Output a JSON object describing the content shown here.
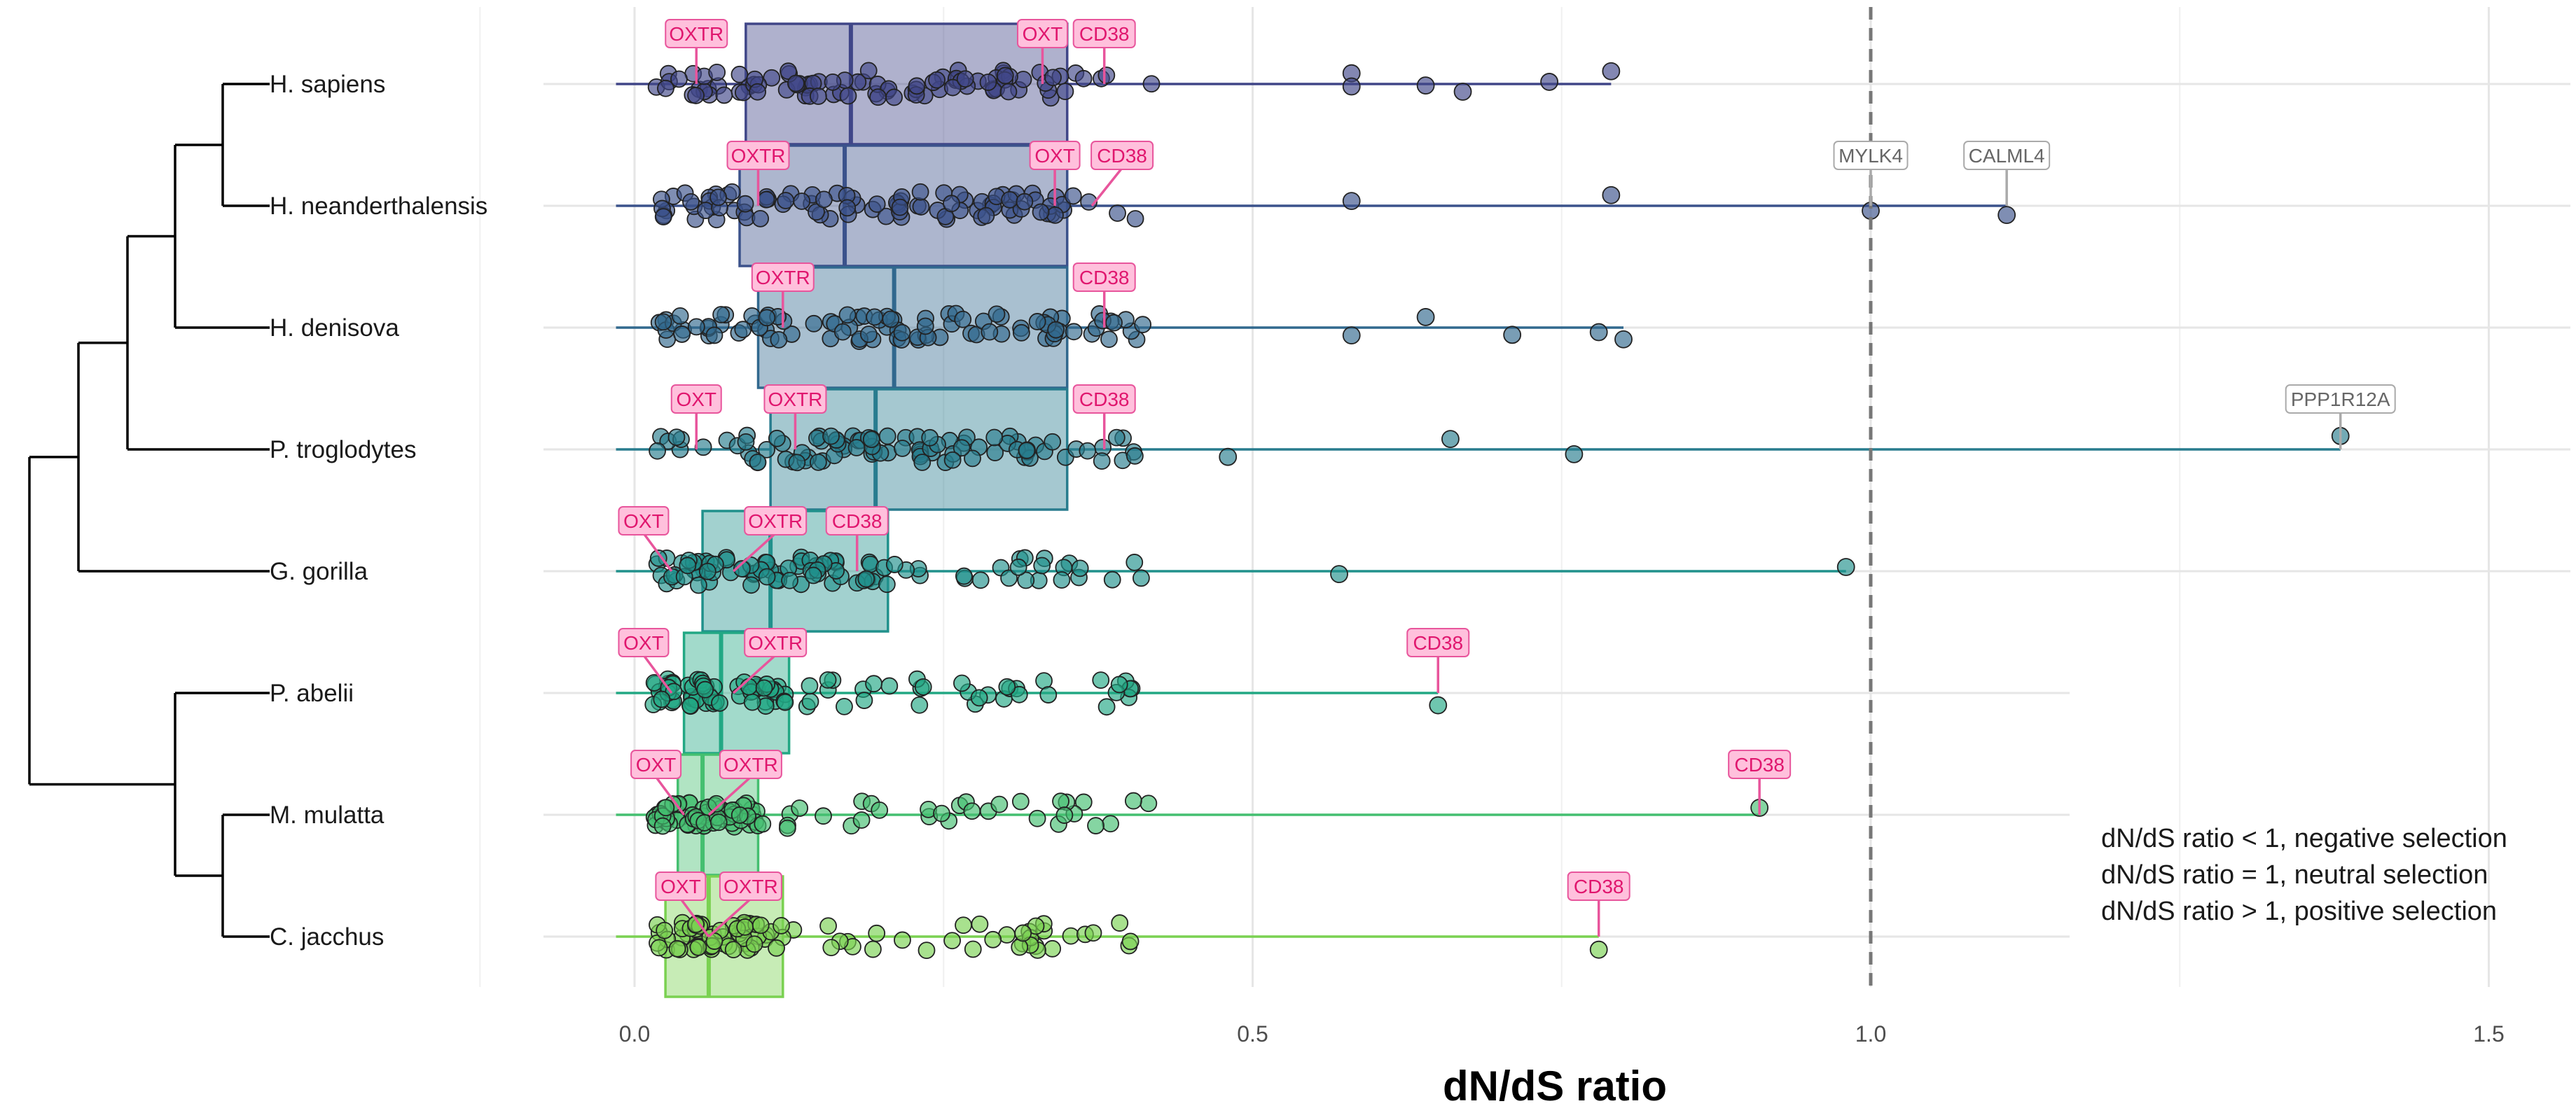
{
  "chart_data": {
    "type": "box-jitter",
    "xlabel": "dN/dS ratio",
    "xlim": [
      -0.15,
      1.57
    ],
    "xticks": [
      0.0,
      0.5,
      1.0,
      1.5
    ],
    "xtick_labels": [
      "0.0",
      "0.5",
      "1.0",
      "1.5"
    ],
    "reference_line": 1.0,
    "grid": true,
    "species": [
      {
        "name": "H. sapiens",
        "color": "#404688",
        "box": {
          "q1": 0.09,
          "median": 0.175,
          "q3": 0.35
        },
        "whisker_max": 0.79,
        "outliers": [
          0.58,
          0.58,
          0.64,
          0.67,
          0.74,
          0.79
        ],
        "labels": [
          {
            "gene": "OXTR",
            "x": 0.05
          },
          {
            "gene": "OXT",
            "x": 0.33
          },
          {
            "gene": "CD38",
            "x": 0.38
          }
        ]
      },
      {
        "name": "H. neanderthalensis",
        "color": "#3b528b",
        "box": {
          "q1": 0.085,
          "median": 0.17,
          "q3": 0.35
        },
        "whisker_max": 1.11,
        "outliers": [
          0.58,
          0.79,
          1.0,
          1.11
        ],
        "labels": [
          {
            "gene": "OXTR",
            "x": 0.1
          },
          {
            "gene": "OXT",
            "x": 0.34
          },
          {
            "gene": "CD38",
            "x": 0.37
          },
          {
            "gene": "MYLK4",
            "x": 1.0
          },
          {
            "gene": "CALML4",
            "x": 1.11
          }
        ]
      },
      {
        "name": "H. denisova",
        "color": "#31688e",
        "box": {
          "q1": 0.1,
          "median": 0.21,
          "q3": 0.35
        },
        "whisker_max": 0.8,
        "outliers": [
          0.58,
          0.64,
          0.71,
          0.78,
          0.8
        ],
        "labels": [
          {
            "gene": "OXTR",
            "x": 0.12
          },
          {
            "gene": "CD38",
            "x": 0.38
          }
        ]
      },
      {
        "name": "P. troglodytes",
        "color": "#287c8e",
        "box": {
          "q1": 0.11,
          "median": 0.195,
          "q3": 0.35
        },
        "whisker_max": 1.38,
        "outliers": [
          0.48,
          0.66,
          0.76,
          1.38
        ],
        "labels": [
          {
            "gene": "OXT",
            "x": 0.05
          },
          {
            "gene": "OXTR",
            "x": 0.13
          },
          {
            "gene": "CD38",
            "x": 0.38
          },
          {
            "gene": "PPP1R12A",
            "x": 1.38
          }
        ]
      },
      {
        "name": "G. gorilla",
        "color": "#21918c",
        "box": {
          "q1": 0.055,
          "median": 0.11,
          "q3": 0.205
        },
        "whisker_max": 0.98,
        "outliers": [
          0.57,
          0.98
        ],
        "labels": [
          {
            "gene": "OXT",
            "x": 0.03
          },
          {
            "gene": "OXTR",
            "x": 0.08
          },
          {
            "gene": "CD38",
            "x": 0.18
          }
        ]
      },
      {
        "name": "P. abelii",
        "color": "#22a884",
        "box": {
          "q1": 0.04,
          "median": 0.07,
          "q3": 0.125
        },
        "whisker_max": 0.65,
        "outliers": [
          0.65
        ],
        "labels": [
          {
            "gene": "OXT",
            "x": 0.03
          },
          {
            "gene": "OXTR",
            "x": 0.08
          },
          {
            "gene": "CD38",
            "x": 0.65
          }
        ]
      },
      {
        "name": "M. mulatta",
        "color": "#44bf70",
        "box": {
          "q1": 0.035,
          "median": 0.055,
          "q3": 0.1
        },
        "whisker_max": 0.91,
        "outliers": [
          0.91
        ],
        "labels": [
          {
            "gene": "OXT",
            "x": 0.04
          },
          {
            "gene": "OXTR",
            "x": 0.06
          },
          {
            "gene": "CD38",
            "x": 0.91
          }
        ]
      },
      {
        "name": "C. jacchus",
        "color": "#7ad151",
        "box": {
          "q1": 0.025,
          "median": 0.06,
          "q3": 0.12
        },
        "whisker_max": 0.78,
        "outliers": [
          0.78
        ],
        "labels": [
          {
            "gene": "OXT",
            "x": 0.06
          },
          {
            "gene": "OXTR",
            "x": 0.06
          },
          {
            "gene": "CD38",
            "x": 0.78
          }
        ]
      }
    ],
    "annotations": [
      "dN/dS ratio < 1, negative selection",
      "dN/dS ratio = 1, neutral selection",
      "dN/dS ratio > 1, positive selection"
    ]
  },
  "colors": {
    "highlight_fill": "#ffc0dc",
    "highlight_stroke": "#e8559c",
    "highlight_text": "#e0166e",
    "other_label_text": "#666666",
    "other_label_stroke": "#aaaaaa",
    "grid": "#e6e6e6",
    "refline": "#777777",
    "tree": "#000000"
  }
}
